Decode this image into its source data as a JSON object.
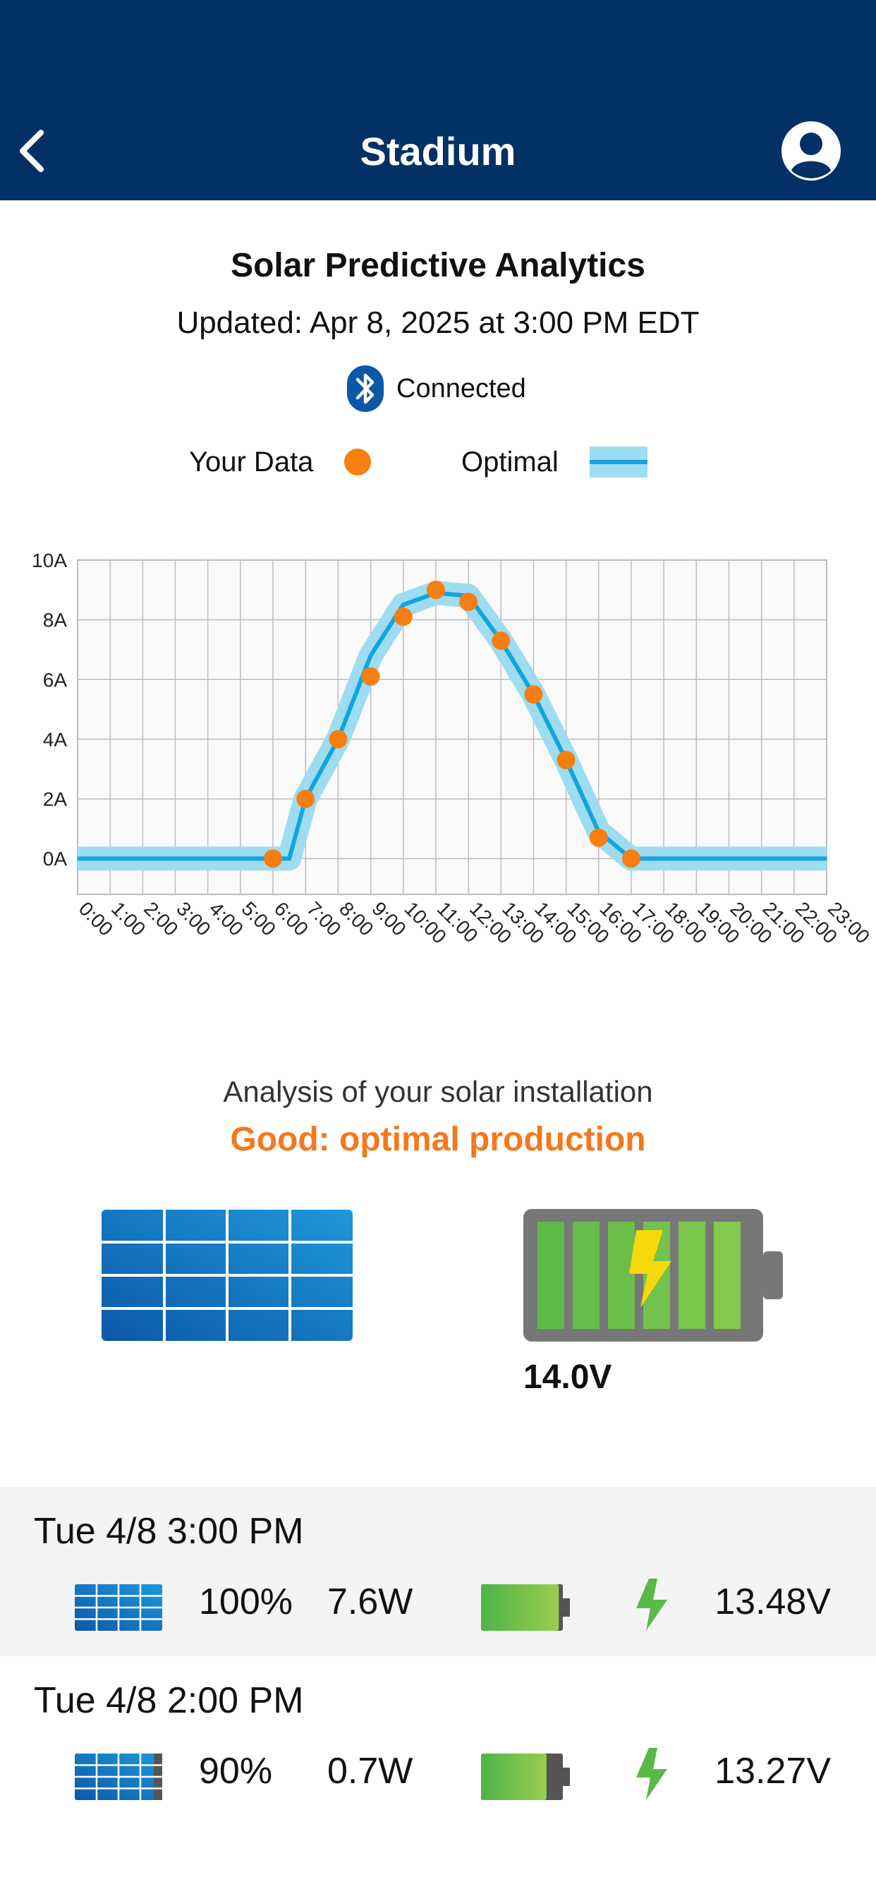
{
  "header": {
    "title": "Stadium"
  },
  "page": {
    "title": "Solar Predictive Analytics",
    "updated": "Updated: Apr 8, 2025 at 3:00 PM EDT",
    "connection_status": "Connected"
  },
  "legend": {
    "your_data": "Your Data",
    "optimal": "Optimal"
  },
  "colors": {
    "header_bg": "#033165",
    "your_data": "#F77E0F",
    "optimal_line": "#12A4DD",
    "optimal_band": "#9EDCF2",
    "status_good": "#F5781C",
    "battery_green": "#6CC04A"
  },
  "chart_data": {
    "type": "line",
    "title": "",
    "xlabel": "",
    "ylabel": "",
    "categories": [
      "0:00",
      "1:00",
      "2:00",
      "3:00",
      "4:00",
      "5:00",
      "6:00",
      "7:00",
      "8:00",
      "9:00",
      "10:00",
      "11:00",
      "12:00",
      "13:00",
      "14:00",
      "15:00",
      "16:00",
      "17:00",
      "18:00",
      "19:00",
      "20:00",
      "21:00",
      "22:00",
      "23:00"
    ],
    "y_ticks": [
      "0A",
      "2A",
      "4A",
      "6A",
      "8A",
      "10A"
    ],
    "ylim": [
      -1.2,
      10
    ],
    "grid": true,
    "series": [
      {
        "name": "Optimal",
        "style": "band-line",
        "x": [
          0,
          6,
          6.5,
          7,
          8,
          9,
          10,
          11,
          12,
          13,
          14,
          15,
          16,
          17,
          23
        ],
        "values": [
          0,
          0,
          0,
          2,
          4,
          6.8,
          8.5,
          8.9,
          8.8,
          7.3,
          5.5,
          3.3,
          0.9,
          0,
          0
        ]
      },
      {
        "name": "Your Data",
        "style": "points",
        "x": [
          6,
          7,
          8,
          9,
          10,
          11,
          12,
          13,
          14,
          15,
          16,
          17
        ],
        "values": [
          0,
          2,
          4,
          6.1,
          8.1,
          9,
          8.6,
          7.3,
          5.5,
          3.3,
          0.7,
          0
        ]
      }
    ]
  },
  "analysis": {
    "heading": "Analysis of your solar installation",
    "status": "Good: optimal production",
    "battery_voltage": "14.0V"
  },
  "readings": [
    {
      "datetime": "Tue 4/8 3:00 PM",
      "panel_percent": "100%",
      "power": "7.6W",
      "battery_level": 0.95,
      "voltage": "13.48V"
    },
    {
      "datetime": "Tue 4/8 2:00 PM",
      "panel_percent": "90%",
      "power": "0.7W",
      "battery_level": 0.8,
      "voltage": "13.27V"
    }
  ]
}
